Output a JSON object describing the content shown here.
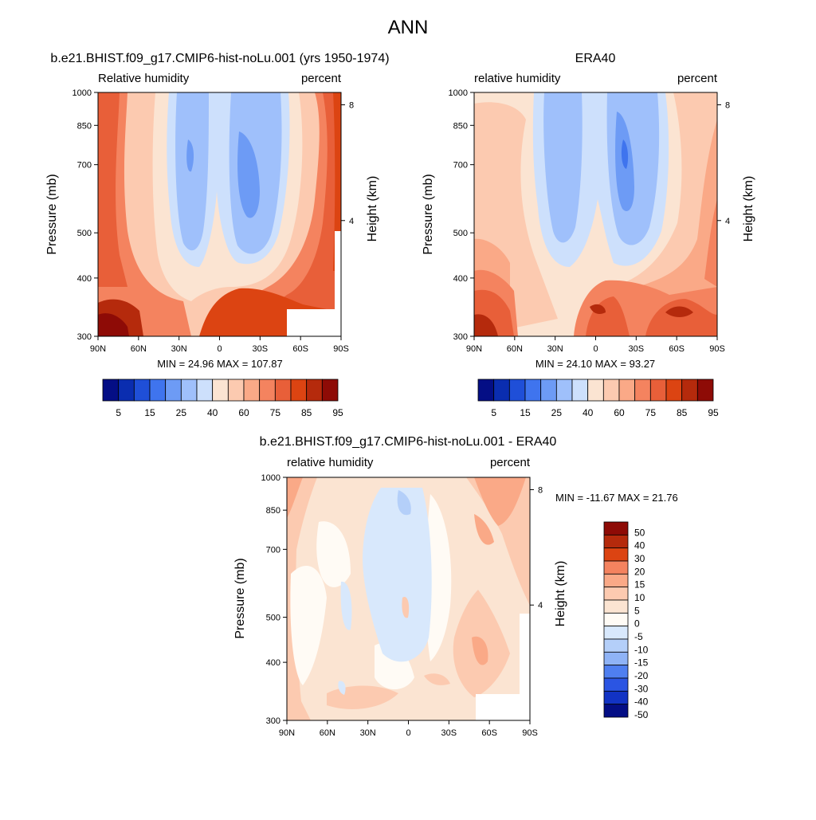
{
  "figure": {
    "main_title": "ANN"
  },
  "chart_data": [
    {
      "type": "heatmap",
      "title": "b.e21.BHIST.f09_g17.CMIP6-hist-noLu.001 (yrs 1950-1974)",
      "left_string": "Relative humidity",
      "right_string": "percent",
      "ylabel": "Pressure (mb)",
      "y2label": "Height (km)",
      "x_tick_labels": [
        "90N",
        "60N",
        "30N",
        "0",
        "30S",
        "60S",
        "90S"
      ],
      "x_ticks": [
        90,
        60,
        30,
        0,
        -30,
        -60,
        -90
      ],
      "xlim": [
        90,
        -90
      ],
      "y_tick_labels": [
        "300",
        "400",
        "500",
        "700",
        "850",
        "1000"
      ],
      "y_ticks": [
        300,
        400,
        500,
        700,
        850,
        1000
      ],
      "ylim": [
        1000,
        300
      ],
      "y_scale": "log",
      "y2_tick_labels": [
        "8",
        "4"
      ],
      "y2_ticks": [
        8,
        4
      ],
      "stats": "MIN =  24.96  MAX = 107.87",
      "colorbar_labels": [
        "5",
        "15",
        "25",
        "40",
        "60",
        "75",
        "85",
        "95"
      ],
      "colorbar_colors": [
        "#040e85",
        "#0a2db0",
        "#1f4fd8",
        "#3f74ee",
        "#6d9bf5",
        "#9fc0fb",
        "#cde0fc",
        "#fbe4d2",
        "#fccab0",
        "#faa987",
        "#f4835f",
        "#e85f39",
        "#dc4412",
        "#b52a0c",
        "#8e0b06"
      ],
      "contour_levels": [
        5,
        10,
        15,
        20,
        25,
        30,
        40,
        50,
        60,
        70,
        75,
        80,
        85,
        90,
        95
      ],
      "value_range": [
        24.96,
        107.87
      ],
      "grid": false
    },
    {
      "type": "heatmap",
      "title": "ERA40",
      "left_string": "relative humidity",
      "right_string": "percent",
      "ylabel": "Pressure (mb)",
      "y2label": "Height (km)",
      "x_tick_labels": [
        "90N",
        "60N",
        "30N",
        "0",
        "30S",
        "60S",
        "90S"
      ],
      "x_ticks": [
        90,
        60,
        30,
        0,
        -30,
        -60,
        -90
      ],
      "xlim": [
        90,
        -90
      ],
      "y_tick_labels": [
        "300",
        "400",
        "500",
        "700",
        "850",
        "1000"
      ],
      "y_ticks": [
        300,
        400,
        500,
        700,
        850,
        1000
      ],
      "ylim": [
        1000,
        300
      ],
      "y_scale": "log",
      "y2_tick_labels": [
        "8",
        "4"
      ],
      "y2_ticks": [
        8,
        4
      ],
      "stats": "MIN =  24.10  MAX =  93.27",
      "colorbar_labels": [
        "5",
        "15",
        "25",
        "40",
        "60",
        "75",
        "85",
        "95"
      ],
      "colorbar_colors": [
        "#040e85",
        "#0a2db0",
        "#1f4fd8",
        "#3f74ee",
        "#6d9bf5",
        "#9fc0fb",
        "#cde0fc",
        "#fbe4d2",
        "#fccab0",
        "#faa987",
        "#f4835f",
        "#e85f39",
        "#dc4412",
        "#b52a0c",
        "#8e0b06"
      ],
      "contour_levels": [
        5,
        10,
        15,
        20,
        25,
        30,
        40,
        50,
        60,
        70,
        75,
        80,
        85,
        90,
        95
      ],
      "value_range": [
        24.1,
        93.27
      ],
      "grid": false
    },
    {
      "type": "heatmap",
      "title": "b.e21.BHIST.f09_g17.CMIP6-hist-noLu.001 - ERA40",
      "left_string": "relative humidity",
      "right_string": "percent",
      "ylabel": "Pressure (mb)",
      "y2label": "Height (km)",
      "x_tick_labels": [
        "90N",
        "60N",
        "30N",
        "0",
        "30S",
        "60S",
        "90S"
      ],
      "x_ticks": [
        90,
        60,
        30,
        0,
        -30,
        -60,
        -90
      ],
      "xlim": [
        90,
        -90
      ],
      "y_tick_labels": [
        "300",
        "400",
        "500",
        "700",
        "850",
        "1000"
      ],
      "y_ticks": [
        300,
        400,
        500,
        700,
        850,
        1000
      ],
      "ylim": [
        1000,
        300
      ],
      "y_scale": "log",
      "y2_tick_labels": [
        "8",
        "4"
      ],
      "y2_ticks": [
        8,
        4
      ],
      "stats": "MIN = -11.67  MAX =  21.76",
      "colorbar_labels": [
        "50",
        "40",
        "30",
        "20",
        "15",
        "10",
        "5",
        "0",
        "-5",
        "-10",
        "-15",
        "-20",
        "-30",
        "-40",
        "-50"
      ],
      "colorbar_colors": [
        "#8e0b06",
        "#b52a0c",
        "#dc4412",
        "#f4835f",
        "#faa987",
        "#fccab0",
        "#fbe4d2",
        "#fffbf5",
        "#d8e8fc",
        "#b4cff9",
        "#8fb3f6",
        "#4f7ff0",
        "#2b55e3",
        "#1233c4",
        "#040e85"
      ],
      "contour_levels": [
        -50,
        -40,
        -30,
        -20,
        -15,
        -10,
        -5,
        0,
        5,
        10,
        15,
        20,
        30,
        40,
        50
      ],
      "value_range": [
        -11.67,
        21.76
      ],
      "grid": false
    }
  ]
}
